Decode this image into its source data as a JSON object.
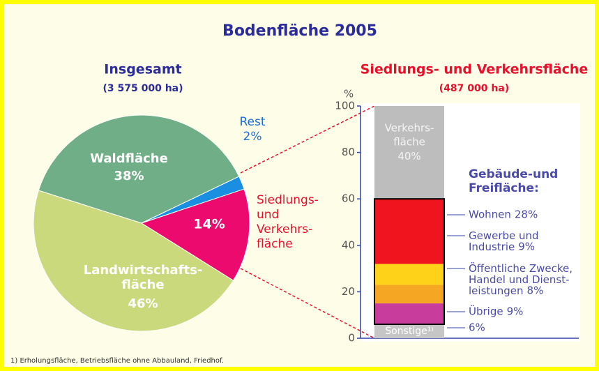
{
  "title": "Bodenfläche 2005",
  "footnote": "1) Erholungsfläche, Betriebsfläche ohne Abbauland, Friedhof.",
  "chart_data": [
    {
      "type": "pie",
      "title": "Insgesamt",
      "subtitle": "(3 575 000 ha)",
      "categories": [
        "Waldfläche",
        "Rest",
        "Siedlungs-\nund\nVerkehrs-\nfläche",
        "Landwirtschafts-\nfläche"
      ],
      "values": [
        38,
        2,
        14,
        46
      ],
      "value_labels": [
        "38%",
        "2%",
        "14%",
        "46%"
      ],
      "colors": [
        "#6fae86",
        "#1a8ee0",
        "#ec0a6e",
        "#cad97c"
      ]
    },
    {
      "type": "stacked-bar",
      "title": "Siedlungs- und Verkehrsfläche",
      "subtitle": "(487 000 ha)",
      "ylabel": "%",
      "group_label": "Gebäude-und\nFreifläche:",
      "categories": [
        "Sonstige¹⁾",
        "Übrige",
        "Öffentliche Zwecke,\nHandel und Dienst-\nleistungen",
        "Gewerbe und\nIndustrie",
        "Wohnen",
        "Verkehrs-\nfläche"
      ],
      "values": [
        6,
        9,
        8,
        9,
        28,
        40
      ],
      "value_labels": [
        "6%",
        "9%",
        "8%",
        "9%",
        "28%",
        "40%"
      ],
      "colors": [
        "#c6c6c6",
        "#c83c9c",
        "#f5a623",
        "#ffd21a",
        "#f0141e",
        "#bdbdbd"
      ],
      "ylim": [
        0,
        100
      ],
      "yticks": [
        0,
        20,
        40,
        60,
        80,
        100
      ]
    }
  ]
}
